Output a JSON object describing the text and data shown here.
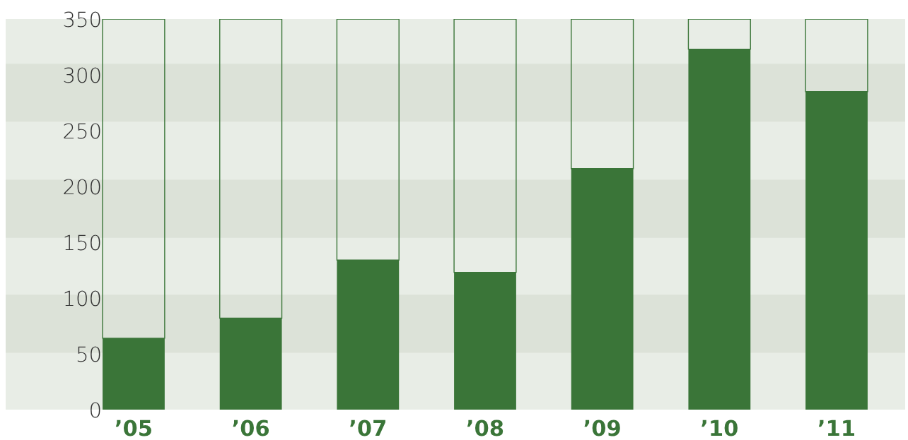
{
  "chart_data": {
    "type": "bar",
    "stacked": true,
    "categories": [
      "’05",
      "’06",
      "’07",
      "’08",
      "’09",
      "’10",
      "’11"
    ],
    "series": [
      {
        "color": "#3a7538",
        "values": [
          64,
          82,
          134,
          123,
          216,
          323,
          285
        ]
      },
      {
        "color": "#3a7538",
        "values": [
          286,
          268,
          216,
          227,
          134,
          27,
          65
        ]
      }
    ],
    "ylim": [
      0,
      350
    ],
    "yticks": [
      0,
      50,
      100,
      150,
      200,
      250,
      300,
      350
    ],
    "bands": [
      {
        "axis": "y",
        "from": 51,
        "to": 103,
        "color": "#dce2d8"
      },
      {
        "axis": "y",
        "from": 154,
        "to": 206,
        "color": "#dce2d8"
      },
      {
        "axis": "y",
        "from": 258,
        "to": 310,
        "color": "#dce2d8"
      }
    ],
    "grid": false,
    "legend": false
  }
}
